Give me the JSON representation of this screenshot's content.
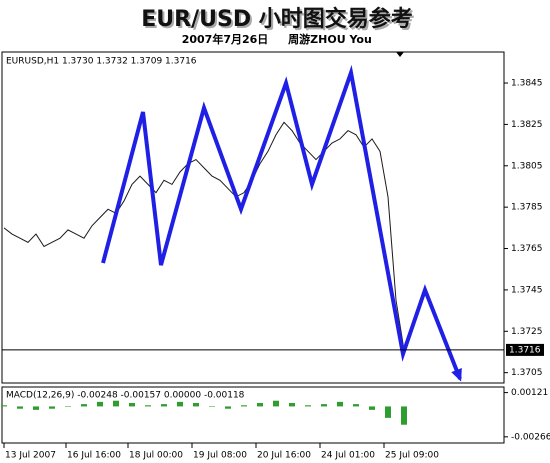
{
  "chart_data": [
    {
      "type": "line",
      "title": "EUR/USD 小时图交易参考",
      "subtitle": "2007年7月26日",
      "author": "周游ZHOU You",
      "header": "EURUSD,H1  1.3730 1.3732 1.3709 1.3716",
      "xlim": [
        0,
        250
      ],
      "xticks": [
        {
          "value": 0,
          "label": "13 Jul 2007"
        },
        {
          "value": 31,
          "label": "16 Jul 16:00"
        },
        {
          "value": 62,
          "label": "18 Jul 00:00"
        },
        {
          "value": 94,
          "label": "19 Jul 08:00"
        },
        {
          "value": 126,
          "label": "20 Jul 16:00"
        },
        {
          "value": 158,
          "label": "24 Jul 01:00"
        },
        {
          "value": 190,
          "label": "25 Jul 09:00"
        }
      ],
      "ylim": [
        1.37,
        1.386
      ],
      "yticks": [
        1.3705,
        1.3725,
        1.3745,
        1.3765,
        1.3785,
        1.3805,
        1.3825,
        1.3845
      ],
      "last_price": 1.3716,
      "series": [
        {
          "color": "#1a1a1a",
          "x": [
            0,
            4,
            8,
            12,
            16,
            20,
            24,
            28,
            32,
            36,
            40,
            44,
            48,
            52,
            56,
            60,
            64,
            68,
            72,
            76,
            80,
            84,
            88,
            92,
            96,
            100,
            104,
            108,
            112,
            116,
            120,
            124,
            128,
            132,
            136,
            140,
            144,
            148,
            152,
            156,
            160,
            164,
            168,
            172,
            176,
            180,
            184,
            188,
            192,
            196,
            200
          ],
          "values": [
            1.3775,
            1.3772,
            1.377,
            1.3768,
            1.3772,
            1.3766,
            1.3768,
            1.377,
            1.3774,
            1.3772,
            1.377,
            1.3776,
            1.378,
            1.3784,
            1.3782,
            1.3788,
            1.3796,
            1.38,
            1.3796,
            1.3792,
            1.3798,
            1.3796,
            1.3802,
            1.3806,
            1.3808,
            1.3804,
            1.38,
            1.3798,
            1.3794,
            1.379,
            1.3792,
            1.3798,
            1.3806,
            1.3812,
            1.382,
            1.3826,
            1.3822,
            1.3816,
            1.3812,
            1.3808,
            1.3812,
            1.3816,
            1.3818,
            1.3822,
            1.382,
            1.3814,
            1.3818,
            1.3812,
            1.379,
            1.374,
            1.3716
          ]
        },
        {
          "color": "#1f1fe6",
          "x": [
            49.5,
            69.5,
            78.5,
            100,
            118.5,
            141,
            154,
            173.5,
            199.5,
            210.5,
            228
          ],
          "values": [
            1.3758,
            1.3831,
            1.3757,
            1.3833,
            1.3784,
            1.3845,
            1.3796,
            1.385,
            1.3714,
            1.3745,
            1.3702
          ]
        }
      ]
    },
    {
      "type": "bar",
      "header": "MACD(12,26,9) -0.00248 -0.00157 0.00000 -0.00118",
      "color": "#2e9e2e",
      "x": [
        0,
        8,
        16,
        24,
        32,
        40,
        48,
        56,
        64,
        72,
        80,
        88,
        96,
        104,
        112,
        120,
        128,
        136,
        144,
        152,
        160,
        168,
        176,
        184,
        192,
        200
      ],
      "values": [
        0.0001,
        -0.0002,
        -0.0003,
        -0.0002,
        0,
        0.0002,
        0.0004,
        0.0005,
        0.0003,
        0.0001,
        0.0002,
        0.0004,
        0.0003,
        0,
        -0.0002,
        0.0001,
        0.0003,
        0.0005,
        0.0003,
        0.0001,
        0.0002,
        0.0004,
        0.0002,
        -0.0003,
        -0.001,
        -0.0016
      ],
      "ylim": [
        -0.0032,
        0.0017
      ],
      "yticks": [
        0.00121,
        -0.00266
      ]
    }
  ]
}
